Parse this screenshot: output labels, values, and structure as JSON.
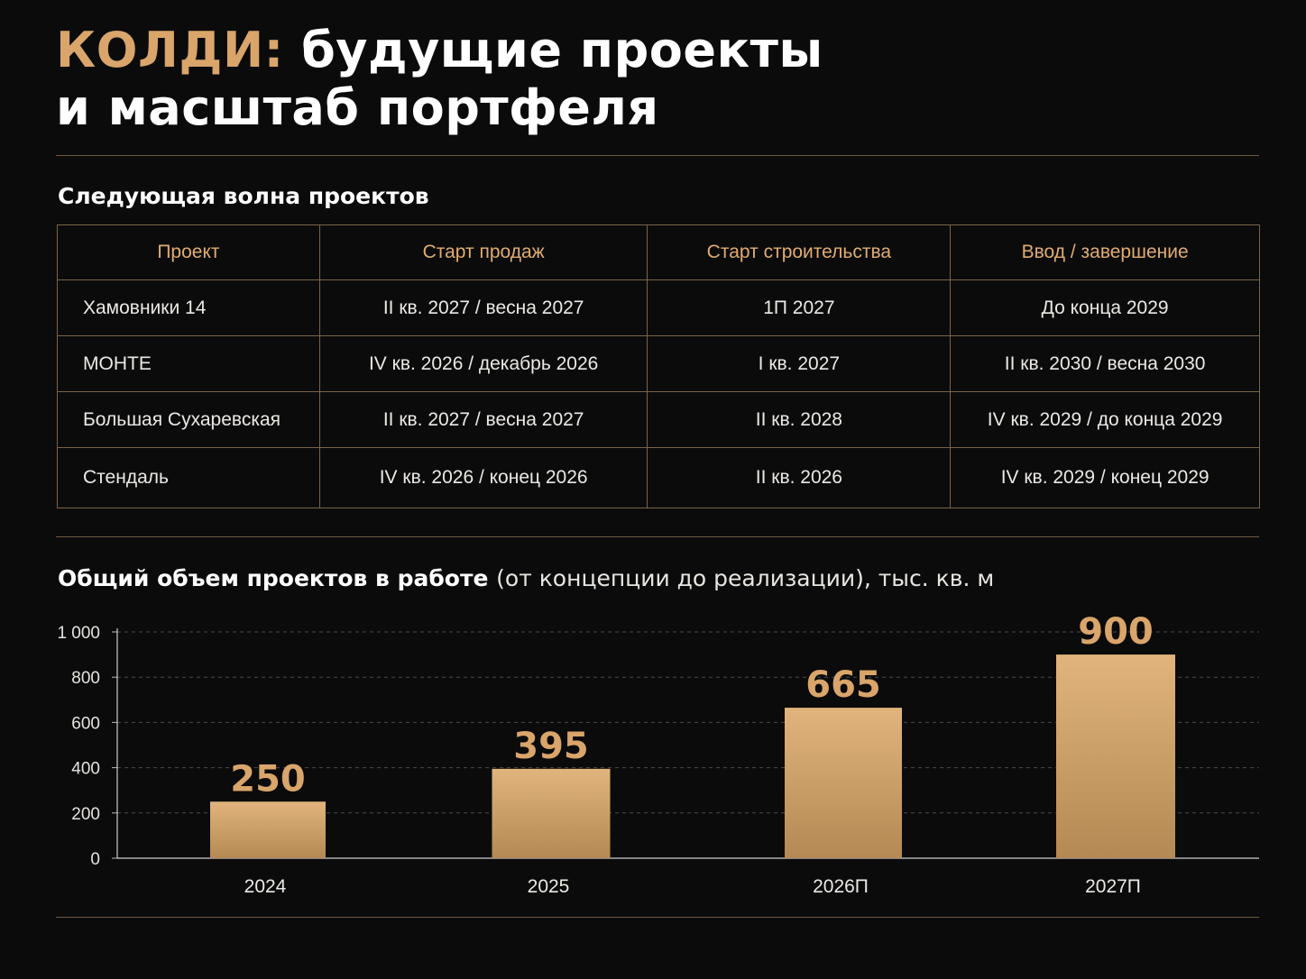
{
  "header": {
    "brand": "КОЛДИ:",
    "title_line1": "будущие проекты",
    "title_line2": "и масштаб портфеля"
  },
  "projects_section": {
    "title": "Следующая волна проектов",
    "columns": [
      "Проект",
      "Старт продаж",
      "Старт строительства",
      "Ввод / завершение"
    ],
    "rows": [
      [
        "Хамовники 14",
        "II кв. 2027 / весна 2027",
        "1П 2027",
        "До конца 2029"
      ],
      [
        "МОНТЕ",
        "IV кв. 2026 / декабрь 2026",
        "I кв. 2027",
        "II кв. 2030 / весна 2030"
      ],
      [
        "Большая Сухаревская",
        "II кв. 2027 / весна 2027",
        "II кв. 2028",
        "IV кв. 2029 / до конца 2029"
      ],
      [
        "Стендаль",
        "IV кв. 2026 / конец 2026",
        "II кв. 2026",
        "IV кв. 2029 / конец 2029"
      ]
    ]
  },
  "chart_section": {
    "title_bold": "Общий объем проектов в работе",
    "title_light": "(от концепции до реализации), тыс. кв. м"
  },
  "chart_data": {
    "type": "bar",
    "categories": [
      "2024",
      "2025",
      "2026П",
      "2027П"
    ],
    "values": [
      250,
      395,
      665,
      900
    ],
    "data_labels": [
      "250",
      "395",
      "665",
      "900"
    ],
    "ylim": [
      0,
      1000
    ],
    "yticks": [
      0,
      200,
      400,
      600,
      800,
      1000
    ],
    "ytick_labels": [
      "0",
      "200",
      "400",
      "600",
      "800",
      "1 000"
    ],
    "grid": true,
    "grid_style": "dashed",
    "bar_color": "#c99a62",
    "label_color": "#d9a56a"
  },
  "colors": {
    "background": "#0b0b0c",
    "accent": "#d9a56a",
    "rule": "#6e5a40"
  }
}
